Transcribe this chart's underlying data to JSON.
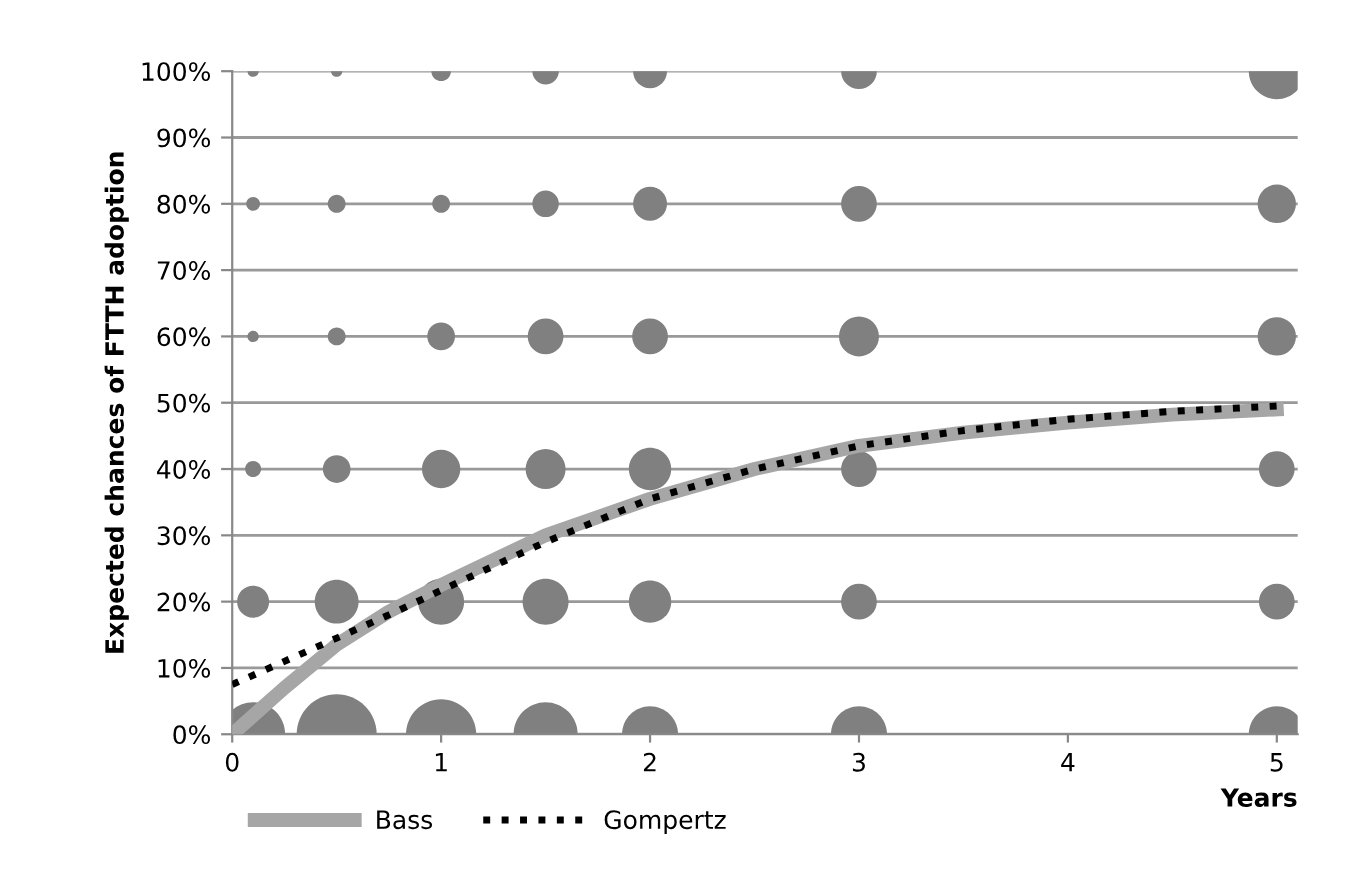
{
  "chart_data": {
    "type": "bubble",
    "ylabel": "Expected chances of FTTH adoption",
    "xlabel": "Years",
    "xlim": [
      0,
      5.1
    ],
    "xticks": [
      0,
      1,
      2,
      3,
      4,
      5
    ],
    "ylim": [
      0,
      100
    ],
    "yticks": [
      {
        "value": 0,
        "label": "0%"
      },
      {
        "value": 10,
        "label": "10%"
      },
      {
        "value": 20,
        "label": "20%"
      },
      {
        "value": 30,
        "label": "30%"
      },
      {
        "value": 40,
        "label": "40%"
      },
      {
        "value": 50,
        "label": "50%"
      },
      {
        "value": 60,
        "label": "60%"
      },
      {
        "value": 70,
        "label": "70%"
      },
      {
        "value": 80,
        "label": "80%"
      },
      {
        "value": 90,
        "label": "90%"
      },
      {
        "value": 100,
        "label": "100%"
      }
    ],
    "grid": "y",
    "legend": "bottom",
    "series": [
      {
        "color": "#808080",
        "x": [
          0.1,
          0.5,
          1,
          1.5,
          2,
          3,
          5,
          0.1,
          0.5,
          1,
          1.5,
          2,
          3,
          5,
          0.1,
          0.5,
          1,
          1.5,
          2,
          3,
          5,
          0.1,
          0.5,
          1,
          1.5,
          2,
          3,
          5,
          0.1,
          0.5,
          1,
          1.5,
          2,
          3,
          5,
          0.1,
          0.5,
          1,
          1.5,
          2,
          3,
          5
        ],
        "values": [
          0,
          0,
          0,
          0,
          0,
          0,
          0,
          20,
          20,
          20,
          20,
          20,
          20,
          20,
          40,
          40,
          40,
          40,
          40,
          40,
          40,
          60,
          60,
          60,
          60,
          60,
          60,
          60,
          80,
          80,
          80,
          80,
          80,
          80,
          80,
          100,
          100,
          100,
          100,
          100,
          100,
          100
        ],
        "sizes": [
          0.64,
          1,
          0.77,
          0.64,
          0.49,
          0.49,
          0.49,
          0.16,
          0.3,
          0.33,
          0.33,
          0.28,
          0.2,
          0.2,
          0.04,
          0.12,
          0.23,
          0.25,
          0.28,
          0.2,
          0.2,
          0.02,
          0.05,
          0.12,
          0.2,
          0.2,
          0.25,
          0.23,
          0.03,
          0.05,
          0.05,
          0.11,
          0.18,
          0.2,
          0.23,
          0.02,
          0.02,
          0.06,
          0.11,
          0.18,
          0.2,
          0.49
        ]
      },
      {
        "type": "line",
        "name": "Bass",
        "color": "#a6a6a6",
        "line_style": "solid",
        "x": [
          0,
          0.25,
          0.5,
          0.75,
          1,
          1.5,
          2,
          2.5,
          3,
          3.5,
          4,
          4.5,
          5
        ],
        "values": [
          0,
          7,
          13.5,
          18.5,
          22.5,
          30,
          35.5,
          40,
          43.5,
          45.5,
          47,
          48.2,
          49
        ]
      },
      {
        "type": "line",
        "name": "Gompertz",
        "color": "#000000",
        "line_style": "dotted",
        "x": [
          0,
          0.25,
          0.5,
          0.75,
          1,
          1.5,
          2,
          2.5,
          3,
          3.5,
          4,
          4.5,
          5
        ],
        "values": [
          7.5,
          11,
          14.5,
          18,
          21.7,
          29,
          35.5,
          40,
          43.5,
          45.8,
          47.5,
          48.7,
          49.5
        ]
      }
    ]
  }
}
